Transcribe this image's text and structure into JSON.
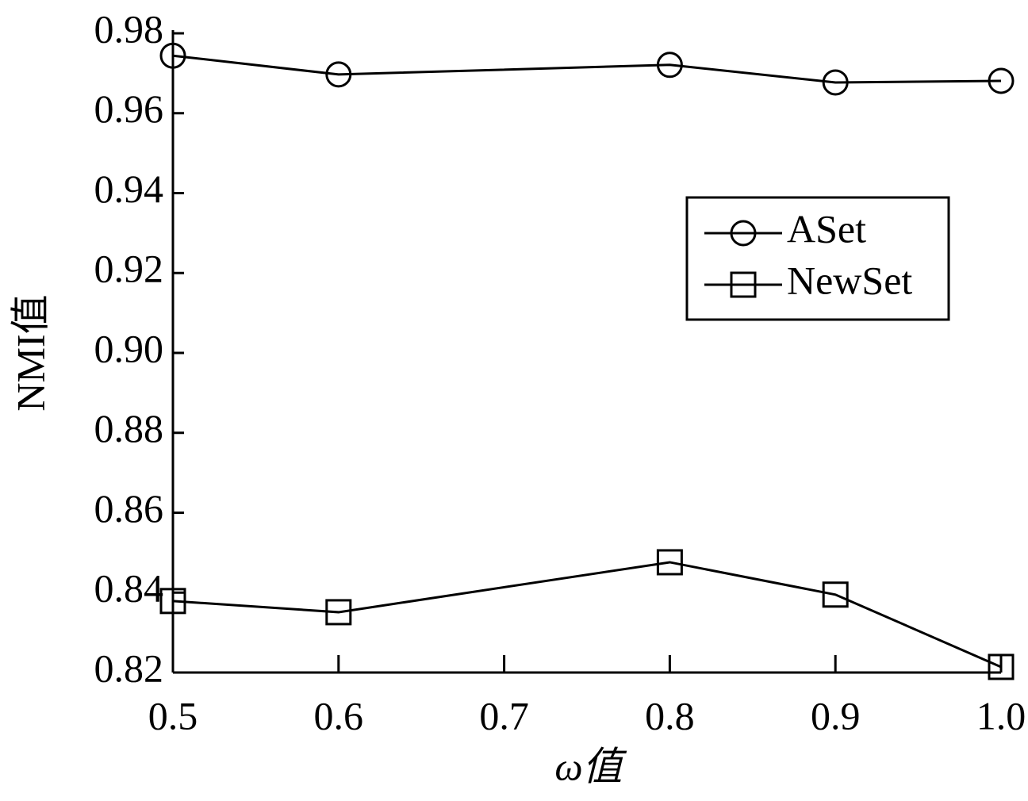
{
  "chart_data": {
    "type": "line",
    "x_label": "ω值",
    "y_label": "NMI值",
    "x": [
      0.5,
      0.6,
      0.8,
      0.9,
      1.0
    ],
    "series": [
      {
        "name": "ASet",
        "color": "#000000",
        "marker": "circle",
        "values": [
          0.9744,
          0.9697,
          0.9721,
          0.9677,
          0.9681
        ]
      },
      {
        "name": "NewSet",
        "color": "#000000",
        "marker": "square",
        "values": [
          0.8379,
          0.8351,
          0.8476,
          0.8395,
          0.8214
        ]
      }
    ],
    "xlim": [
      0.5,
      1.0
    ],
    "xticks": [
      0.5,
      0.6,
      0.7,
      0.8,
      0.9,
      {
        "value": 1.0,
        "label": "1.0"
      }
    ],
    "ylim": [
      0.82,
      0.98
    ],
    "yticks": [
      0.82,
      0.84,
      0.86,
      0.88,
      {
        "value": 0.9,
        "label": "0.90"
      },
      0.92,
      0.94,
      0.96,
      0.98
    ],
    "legend": "upper right"
  }
}
